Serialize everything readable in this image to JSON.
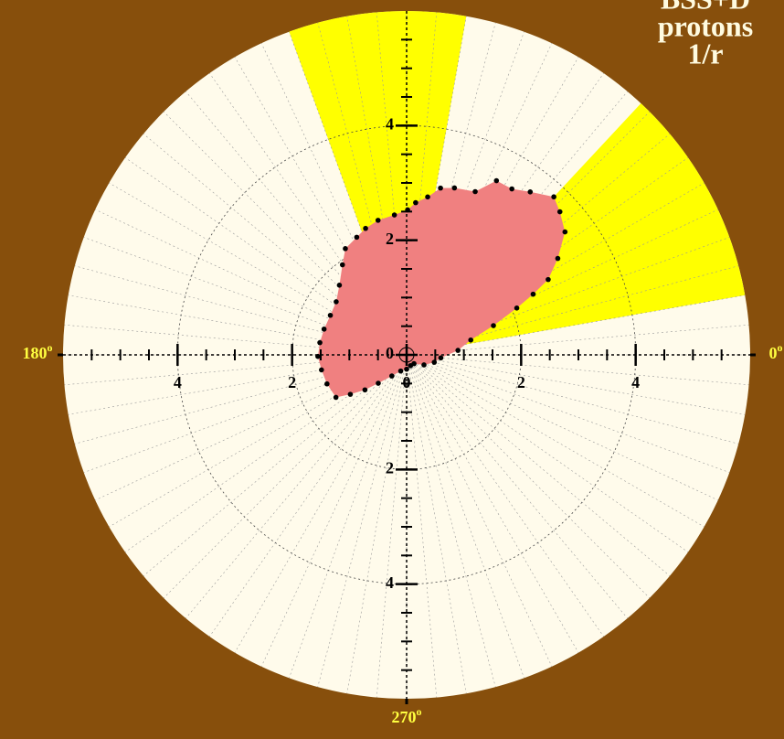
{
  "chart_data": {
    "type": "polar",
    "title_lines": [
      "BSS+D",
      "protons",
      "1/r"
    ],
    "rlim": [
      0,
      6
    ],
    "rticks": [
      0,
      2,
      4
    ],
    "r_minor_step": 0.5,
    "angle_grid_step": 5,
    "angle_ticks": [
      {
        "value": 0,
        "label": "0"
      },
      {
        "value": 180,
        "label": "180"
      },
      {
        "value": 270,
        "label": "270"
      }
    ],
    "angle_unit": "o",
    "highlight_sectors": [
      [
        10,
        47
      ],
      [
        80,
        110
      ]
    ],
    "highlight_color": "#ffff00",
    "fill_color": "#f08080",
    "marker_color": "#000000",
    "theta": [
      5,
      13,
      18.6,
      23,
      25.6,
      28,
      32.5,
      37.8,
      43,
      47,
      52.8,
      57.6,
      62.7,
      67.2,
      74,
      78.5,
      82.4,
      86.6,
      89.6,
      95,
      102,
      108,
      113,
      120,
      125.5,
      134,
      143,
      152.6,
      162.7,
      172,
      181,
      190,
      200,
      211,
      215,
      220,
      225,
      235,
      250,
      270,
      290,
      310,
      330,
      345,
      355
    ],
    "r": [
      0.9,
      1.15,
      1.6,
      2.09,
      2.45,
      2.8,
      3.13,
      3.5,
      3.66,
      3.77,
      3.57,
      3.43,
      3.42,
      3.09,
      3.03,
      2.97,
      2.78,
      2.66,
      2.53,
      2.45,
      2.4,
      2.32,
      2.23,
      2.14,
      1.93,
      1.69,
      1.54,
      1.5,
      1.51,
      1.53,
      1.55,
      1.51,
      1.48,
      1.44,
      1.2,
      0.95,
      0.7,
      0.45,
      0.3,
      0.25,
      0.2,
      0.2,
      0.35,
      0.5,
      0.6
    ]
  }
}
